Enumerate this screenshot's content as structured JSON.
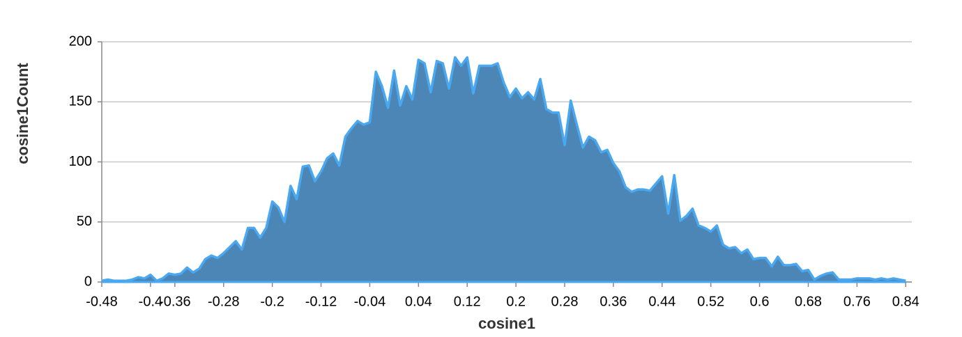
{
  "chart_data": {
    "type": "area",
    "x_label": "cosine1",
    "y_label": "cosine1Count",
    "x": [
      -0.48,
      -0.47,
      -0.46,
      -0.45,
      -0.44,
      -0.43,
      -0.42,
      -0.41,
      -0.4,
      -0.39,
      -0.38,
      -0.37,
      -0.36,
      -0.35,
      -0.34,
      -0.33,
      -0.32,
      -0.31,
      -0.3,
      -0.29,
      -0.28,
      -0.27,
      -0.26,
      -0.25,
      -0.24,
      -0.23,
      -0.22,
      -0.21,
      -0.2,
      -0.19,
      -0.18,
      -0.17,
      -0.16,
      -0.15,
      -0.14,
      -0.13,
      -0.12,
      -0.11,
      -0.1,
      -0.09,
      -0.08,
      -0.07,
      -0.06,
      -0.05,
      -0.04,
      -0.03,
      -0.02,
      -0.01,
      0,
      0.01,
      0.02,
      0.03,
      0.04,
      0.05,
      0.06,
      0.07,
      0.08,
      0.09,
      0.1,
      0.11,
      0.12,
      0.13,
      0.14,
      0.15,
      0.16,
      0.17,
      0.18,
      0.19,
      0.2,
      0.21,
      0.22,
      0.23,
      0.24,
      0.25,
      0.26,
      0.27,
      0.28,
      0.29,
      0.3,
      0.31,
      0.32,
      0.33,
      0.34,
      0.35,
      0.36,
      0.37,
      0.38,
      0.39,
      0.4,
      0.41,
      0.42,
      0.43,
      0.44,
      0.45,
      0.46,
      0.47,
      0.48,
      0.49,
      0.5,
      0.51,
      0.52,
      0.53,
      0.54,
      0.55,
      0.56,
      0.57,
      0.58,
      0.59,
      0.6,
      0.61,
      0.62,
      0.63,
      0.64,
      0.65,
      0.66,
      0.67,
      0.68,
      0.69,
      0.7,
      0.71,
      0.72,
      0.73,
      0.74,
      0.75,
      0.76,
      0.77,
      0.78,
      0.79,
      0.8,
      0.81,
      0.82,
      0.83,
      0.84
    ],
    "values": [
      1,
      2,
      1,
      1,
      1,
      2,
      4,
      3,
      6,
      1,
      3,
      7,
      6,
      7,
      12,
      8,
      11,
      19,
      22,
      20,
      24,
      29,
      34,
      27,
      45,
      45,
      37,
      45,
      67,
      62,
      50,
      80,
      69,
      96,
      97,
      84,
      92,
      103,
      107,
      97,
      121,
      128,
      134,
      131,
      133,
      175,
      163,
      145,
      176,
      147,
      163,
      152,
      185,
      182,
      158,
      184,
      182,
      161,
      187,
      180,
      187,
      157,
      180,
      180,
      180,
      182,
      166,
      154,
      161,
      153,
      158,
      152,
      169,
      144,
      141,
      141,
      114,
      151,
      131,
      112,
      121,
      118,
      108,
      110,
      99,
      92,
      79,
      75,
      77,
      77,
      76,
      82,
      88,
      57,
      89,
      51,
      55,
      61,
      47,
      45,
      42,
      47,
      31,
      28,
      29,
      24,
      27,
      19,
      20,
      20,
      13,
      21,
      14,
      14,
      15,
      9,
      10,
      2,
      5,
      7,
      8,
      2,
      2,
      2,
      3,
      3,
      3,
      2,
      3,
      2,
      3,
      2,
      1
    ],
    "color": "#4682b4",
    "line_color": "#4aa8f0",
    "xlim": [
      -0.48,
      0.85
    ],
    "xticks": [
      -0.48,
      -0.4,
      -0.36,
      -0.28,
      -0.2,
      -0.12,
      -0.04,
      0.04,
      0.12,
      0.2,
      0.28,
      0.36,
      0.44,
      0.52,
      0.6,
      0.68,
      0.76,
      0.84
    ],
    "ylim": [
      0,
      200
    ],
    "yticks": [
      0,
      50,
      100,
      150,
      200
    ],
    "grid": true
  }
}
